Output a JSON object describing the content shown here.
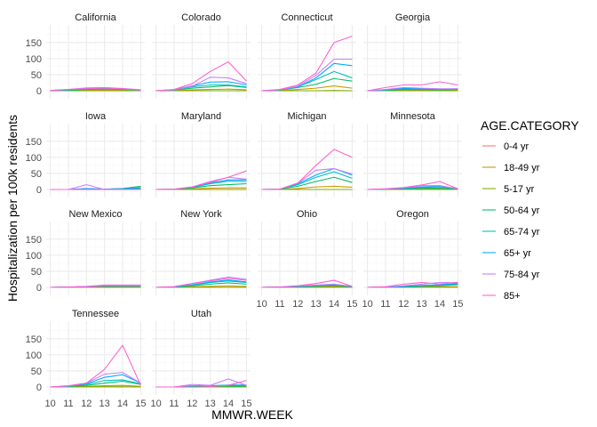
{
  "chart_data": {
    "type": "line",
    "facet": "small-multiples",
    "xlabel": "MMWR.WEEK",
    "ylabel": "Hospitalization per 100k residents",
    "x": [
      10,
      11,
      12,
      13,
      14,
      15
    ],
    "x_ticks": [
      10,
      11,
      12,
      13,
      14,
      15
    ],
    "ylim": [
      0,
      180
    ],
    "y_ticks": [
      0,
      50,
      100,
      150
    ],
    "grid": true,
    "legend": {
      "title": "AGE.CATEGORY",
      "position": "right"
    },
    "series_order": [
      "0-4 yr",
      "18-49 yr",
      "5-17 yr",
      "50-64 yr",
      "65-74 yr",
      "65+ yr",
      "75-84 yr",
      "85+"
    ],
    "colors": {
      "0-4 yr": "#F8766D",
      "18-49 yr": "#CD9600",
      "5-17 yr": "#7CAE00",
      "50-64 yr": "#00BE67",
      "65-74 yr": "#00BFC4",
      "65+ yr": "#00A9FF",
      "75-84 yr": "#C77CFF",
      "85+": "#FF61CC"
    },
    "panels": [
      {
        "name": "California",
        "series": {
          "0-4 yr": [
            0,
            0,
            0,
            0,
            0,
            0
          ],
          "18-49 yr": [
            0,
            1,
            2,
            2,
            2,
            1
          ],
          "5-17 yr": [
            0,
            0,
            0,
            0,
            0,
            0
          ],
          "50-64 yr": [
            0,
            2,
            4,
            5,
            4,
            2
          ],
          "65-74 yr": [
            1,
            3,
            6,
            6,
            5,
            2
          ],
          "65+ yr": [
            1,
            3,
            7,
            8,
            6,
            2
          ],
          "75-84 yr": [
            1,
            4,
            9,
            10,
            7,
            3
          ],
          "85+": [
            1,
            4,
            6,
            8,
            6,
            2
          ]
        }
      },
      {
        "name": "Colorado",
        "series": {
          "0-4 yr": [
            0,
            0,
            0,
            0,
            0,
            0
          ],
          "18-49 yr": [
            0,
            1,
            3,
            4,
            5,
            3
          ],
          "5-17 yr": [
            0,
            0,
            0,
            0,
            0,
            0
          ],
          "50-64 yr": [
            0,
            2,
            8,
            12,
            16,
            10
          ],
          "65-74 yr": [
            0,
            3,
            12,
            18,
            18,
            12
          ],
          "65+ yr": [
            0,
            3,
            15,
            27,
            28,
            18
          ],
          "75-84 yr": [
            0,
            3,
            14,
            42,
            40,
            22
          ],
          "85+": [
            0,
            4,
            22,
            60,
            90,
            30
          ]
        }
      },
      {
        "name": "Connecticut",
        "series": {
          "0-4 yr": [
            0,
            0,
            0,
            0,
            0,
            0
          ],
          "18-49 yr": [
            0,
            1,
            4,
            8,
            15,
            8
          ],
          "5-17 yr": [
            0,
            0,
            0,
            0,
            1,
            0
          ],
          "50-64 yr": [
            0,
            2,
            10,
            20,
            38,
            30
          ],
          "65-74 yr": [
            0,
            3,
            12,
            35,
            60,
            40
          ],
          "65+ yr": [
            0,
            3,
            12,
            40,
            85,
            78
          ],
          "75-84 yr": [
            0,
            3,
            14,
            48,
            98,
            98
          ],
          "85+": [
            0,
            4,
            18,
            55,
            150,
            170
          ]
        }
      },
      {
        "name": "Georgia",
        "series": {
          "0-4 yr": [
            0,
            0,
            0,
            0,
            0,
            0
          ],
          "18-49 yr": [
            0,
            1,
            2,
            2,
            2,
            2
          ],
          "5-17 yr": [
            0,
            0,
            0,
            0,
            0,
            0
          ],
          "50-64 yr": [
            0,
            2,
            4,
            4,
            3,
            4
          ],
          "65-74 yr": [
            0,
            3,
            6,
            5,
            4,
            5
          ],
          "65+ yr": [
            0,
            3,
            7,
            6,
            5,
            6
          ],
          "75-84 yr": [
            0,
            4,
            10,
            8,
            6,
            6
          ],
          "85+": [
            0,
            10,
            18,
            18,
            28,
            18
          ]
        }
      },
      {
        "name": "Iowa",
        "series": {
          "0-4 yr": [
            0,
            0,
            0,
            0,
            0,
            0
          ],
          "18-49 yr": [
            0,
            0,
            1,
            1,
            1,
            2
          ],
          "5-17 yr": [
            0,
            0,
            0,
            0,
            0,
            0
          ],
          "50-64 yr": [
            0,
            0,
            2,
            1,
            3,
            10
          ],
          "65-74 yr": [
            0,
            0,
            2,
            1,
            2,
            6
          ],
          "65+ yr": [
            0,
            0,
            3,
            1,
            2,
            4
          ],
          "75-84 yr": [
            0,
            0,
            15,
            0,
            0,
            0
          ],
          "85+": [
            0,
            0,
            0,
            0,
            0,
            0
          ]
        }
      },
      {
        "name": "Maryland",
        "series": {
          "0-4 yr": [
            0,
            0,
            0,
            0,
            0,
            0
          ],
          "18-49 yr": [
            0,
            0,
            2,
            4,
            5,
            5
          ],
          "5-17 yr": [
            0,
            0,
            0,
            0,
            0,
            0
          ],
          "50-64 yr": [
            0,
            1,
            5,
            12,
            15,
            18
          ],
          "65-74 yr": [
            0,
            1,
            6,
            18,
            26,
            25
          ],
          "65+ yr": [
            0,
            1,
            7,
            20,
            30,
            30
          ],
          "75-84 yr": [
            0,
            1,
            8,
            25,
            38,
            32
          ],
          "85+": [
            0,
            1,
            8,
            22,
            38,
            58
          ]
        }
      },
      {
        "name": "Michigan",
        "series": {
          "0-4 yr": [
            0,
            0,
            0,
            0,
            0,
            0
          ],
          "18-49 yr": [
            0,
            0,
            3,
            8,
            10,
            7
          ],
          "5-17 yr": [
            0,
            0,
            0,
            0,
            0,
            0
          ],
          "50-64 yr": [
            0,
            1,
            10,
            25,
            38,
            22
          ],
          "65-74 yr": [
            0,
            1,
            15,
            38,
            55,
            35
          ],
          "65+ yr": [
            0,
            1,
            18,
            45,
            65,
            45
          ],
          "75-84 yr": [
            0,
            1,
            20,
            60,
            65,
            48
          ],
          "85+": [
            0,
            1,
            20,
            75,
            125,
            100
          ]
        }
      },
      {
        "name": "Minnesota",
        "series": {
          "0-4 yr": [
            0,
            0,
            0,
            0,
            0,
            0
          ],
          "18-49 yr": [
            0,
            0,
            1,
            2,
            2,
            1
          ],
          "5-17 yr": [
            0,
            0,
            0,
            0,
            0,
            0
          ],
          "50-64 yr": [
            0,
            1,
            2,
            4,
            4,
            2
          ],
          "65-74 yr": [
            0,
            1,
            3,
            6,
            8,
            2
          ],
          "65+ yr": [
            0,
            1,
            4,
            8,
            10,
            2
          ],
          "75-84 yr": [
            0,
            2,
            5,
            12,
            12,
            2
          ],
          "85+": [
            0,
            2,
            6,
            14,
            25,
            2
          ]
        }
      },
      {
        "name": "New Mexico",
        "series": {
          "0-4 yr": [
            0,
            0,
            0,
            0,
            0,
            0
          ],
          "18-49 yr": [
            0,
            0,
            1,
            1,
            1,
            1
          ],
          "5-17 yr": [
            0,
            0,
            0,
            0,
            0,
            0
          ],
          "50-64 yr": [
            0,
            1,
            2,
            3,
            3,
            3
          ],
          "65-74 yr": [
            0,
            1,
            2,
            4,
            4,
            4
          ],
          "65+ yr": [
            0,
            1,
            2,
            5,
            5,
            5
          ],
          "75-84 yr": [
            0,
            1,
            3,
            7,
            7,
            7
          ],
          "85+": [
            0,
            1,
            2,
            5,
            5,
            5
          ]
        }
      },
      {
        "name": "New York",
        "series": {
          "0-4 yr": [
            0,
            0,
            0,
            0,
            0,
            0
          ],
          "18-49 yr": [
            0,
            0,
            2,
            3,
            4,
            3
          ],
          "5-17 yr": [
            0,
            0,
            0,
            0,
            0,
            0
          ],
          "50-64 yr": [
            0,
            1,
            5,
            10,
            14,
            10
          ],
          "65-74 yr": [
            0,
            1,
            7,
            15,
            20,
            15
          ],
          "65+ yr": [
            0,
            1,
            8,
            17,
            23,
            17
          ],
          "75-84 yr": [
            0,
            2,
            12,
            22,
            32,
            25
          ],
          "85+": [
            0,
            2,
            12,
            20,
            28,
            22
          ]
        }
      },
      {
        "name": "Ohio",
        "series": {
          "0-4 yr": [
            0,
            0,
            0,
            0,
            0,
            0
          ],
          "18-49 yr": [
            0,
            0,
            1,
            2,
            3,
            1
          ],
          "5-17 yr": [
            0,
            0,
            0,
            0,
            0,
            0
          ],
          "50-64 yr": [
            0,
            1,
            2,
            4,
            6,
            2
          ],
          "65-74 yr": [
            0,
            1,
            3,
            5,
            8,
            2
          ],
          "65+ yr": [
            0,
            1,
            3,
            6,
            9,
            3
          ],
          "75-84 yr": [
            0,
            1,
            4,
            7,
            10,
            3
          ],
          "85+": [
            0,
            1,
            5,
            12,
            22,
            3
          ]
        }
      },
      {
        "name": "Oregon",
        "series": {
          "0-4 yr": [
            0,
            0,
            0,
            0,
            0,
            0
          ],
          "18-49 yr": [
            0,
            0,
            1,
            2,
            2,
            2
          ],
          "5-17 yr": [
            0,
            0,
            0,
            0,
            0,
            0
          ],
          "50-64 yr": [
            0,
            1,
            2,
            4,
            5,
            8
          ],
          "65-74 yr": [
            0,
            1,
            3,
            5,
            7,
            10
          ],
          "65+ yr": [
            0,
            1,
            3,
            6,
            8,
            12
          ],
          "75-84 yr": [
            0,
            1,
            5,
            10,
            15,
            14
          ],
          "85+": [
            0,
            2,
            10,
            15,
            10,
            16
          ]
        }
      },
      {
        "name": "Tennessee",
        "series": {
          "0-4 yr": [
            0,
            0,
            0,
            0,
            0,
            0
          ],
          "18-49 yr": [
            0,
            1,
            2,
            4,
            5,
            2
          ],
          "5-17 yr": [
            0,
            0,
            1,
            1,
            1,
            0
          ],
          "50-64 yr": [
            0,
            2,
            5,
            12,
            18,
            8
          ],
          "65-74 yr": [
            0,
            2,
            8,
            20,
            22,
            10
          ],
          "65+ yr": [
            0,
            3,
            10,
            30,
            38,
            12
          ],
          "75-84 yr": [
            0,
            3,
            12,
            40,
            45,
            12
          ],
          "85+": [
            0,
            4,
            12,
            55,
            130,
            5
          ]
        }
      },
      {
        "name": "Utah",
        "series": {
          "0-4 yr": [
            0,
            0,
            0,
            0,
            0,
            0
          ],
          "18-49 yr": [
            0,
            0,
            1,
            1,
            2,
            2
          ],
          "5-17 yr": [
            0,
            0,
            0,
            0,
            0,
            0
          ],
          "50-64 yr": [
            0,
            0,
            2,
            2,
            3,
            3
          ],
          "65-74 yr": [
            0,
            0,
            3,
            3,
            5,
            5
          ],
          "65+ yr": [
            0,
            0,
            4,
            4,
            6,
            6
          ],
          "75-84 yr": [
            0,
            0,
            8,
            5,
            25,
            5
          ],
          "85+": [
            0,
            0,
            4,
            2,
            5,
            20
          ]
        }
      }
    ]
  }
}
